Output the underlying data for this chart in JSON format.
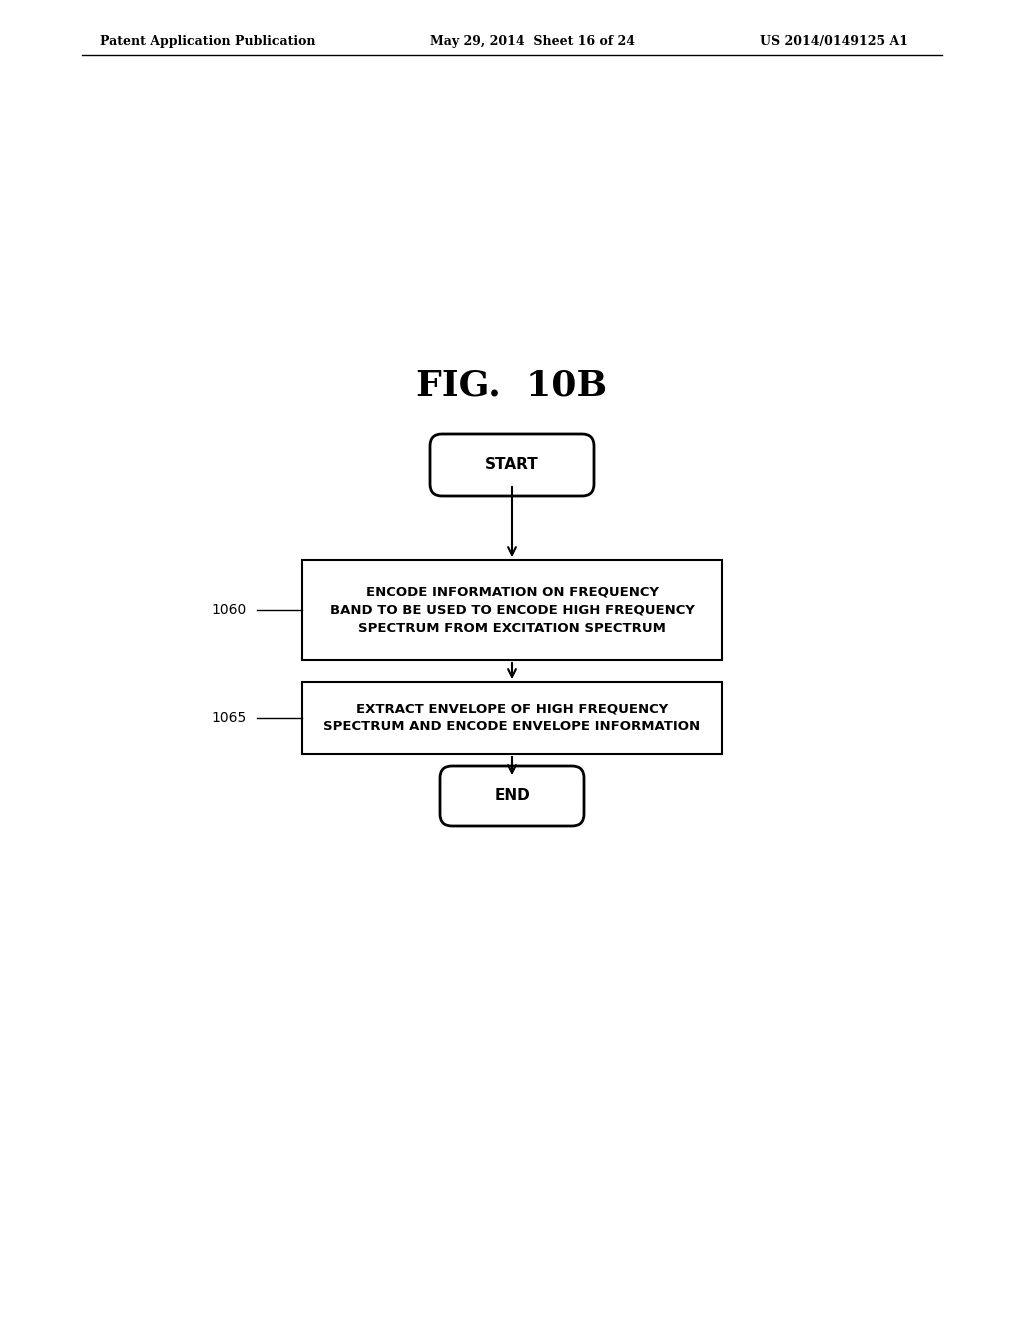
{
  "title": "FIG.  10B",
  "header_left": "Patent Application Publication",
  "header_mid": "May 29, 2014  Sheet 16 of 24",
  "header_right": "US 2014/0149125 A1",
  "start_label": "START",
  "end_label": "END",
  "box1_text": "ENCODE INFORMATION ON FREQUENCY\nBAND TO BE USED TO ENCODE HIGH FREQUENCY\nSPECTRUM FROM EXCITATION SPECTRUM",
  "box1_label": "1060",
  "box2_text": "EXTRACT ENVELOPE OF HIGH FREQUENCY\nSPECTRUM AND ENCODE ENVELOPE INFORMATION",
  "box2_label": "1065",
  "bg_color": "#ffffff",
  "text_color": "#000000",
  "box_edge_color": "#000000",
  "arrow_color": "#000000"
}
